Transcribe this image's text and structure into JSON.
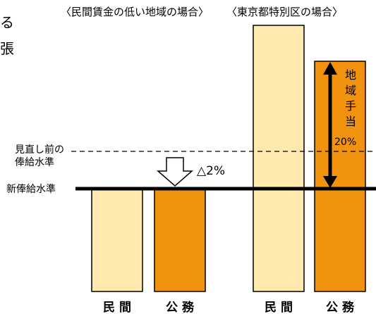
{
  "header": {
    "partial_top": "る",
    "partial_bottom": "張",
    "title_left": "〈民間賃金の低い地域の場合〉",
    "title_right": "〈東京都特別区の場合〉"
  },
  "levels": {
    "previous_label_line1": "見直し前の",
    "previous_label_line2": "俸給水準",
    "new_label": "新俸給水準"
  },
  "reduction": {
    "label": "△2%"
  },
  "allowance": {
    "label_chars": [
      "地",
      "域",
      "手",
      "当"
    ],
    "value": "20%"
  },
  "bars": [
    {
      "name": "bar-private-low",
      "group": "low",
      "sector": "private",
      "color": "#FFE9AE"
    },
    {
      "name": "bar-public-low",
      "group": "low",
      "sector": "public",
      "color": "#F2930F"
    },
    {
      "name": "bar-private-tokyo",
      "group": "tokyo",
      "sector": "private",
      "color": "#FFE9AE"
    },
    {
      "name": "bar-public-tokyo",
      "group": "tokyo",
      "sector": "public",
      "color": "#F2930F"
    }
  ],
  "categories": {
    "private": "民 間",
    "public": "公 務"
  }
}
